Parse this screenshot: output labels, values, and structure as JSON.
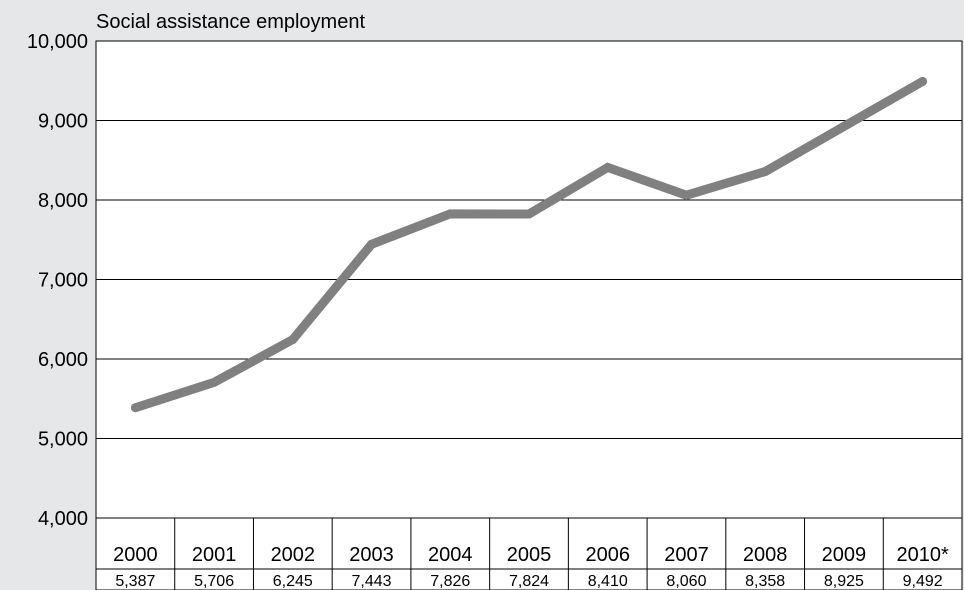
{
  "chart_data": {
    "type": "line",
    "title": "Social assistance employment",
    "categories": [
      "2000",
      "2001",
      "2002",
      "2003",
      "2004",
      "2005",
      "2006",
      "2007",
      "2008",
      "2009",
      "2010*"
    ],
    "values": [
      5387,
      5706,
      6245,
      7443,
      7826,
      7824,
      8410,
      8060,
      8358,
      8925,
      9492
    ],
    "value_labels": [
      "5,387",
      "5,706",
      "6,245",
      "7,443",
      "7,826",
      "7,824",
      "8,410",
      "8,060",
      "8,358",
      "8,925",
      "9,492"
    ],
    "yticks": [
      "4,000",
      "5,000",
      "6,000",
      "7,000",
      "8,000",
      "9,000",
      "10,000"
    ],
    "ylim": [
      4000,
      10000
    ],
    "grid": true,
    "legend": "none",
    "colors": {
      "line": "#808080",
      "plot_bg": "#ffffff",
      "page_bg": "#e6e7e8",
      "grid": "#000000"
    }
  }
}
